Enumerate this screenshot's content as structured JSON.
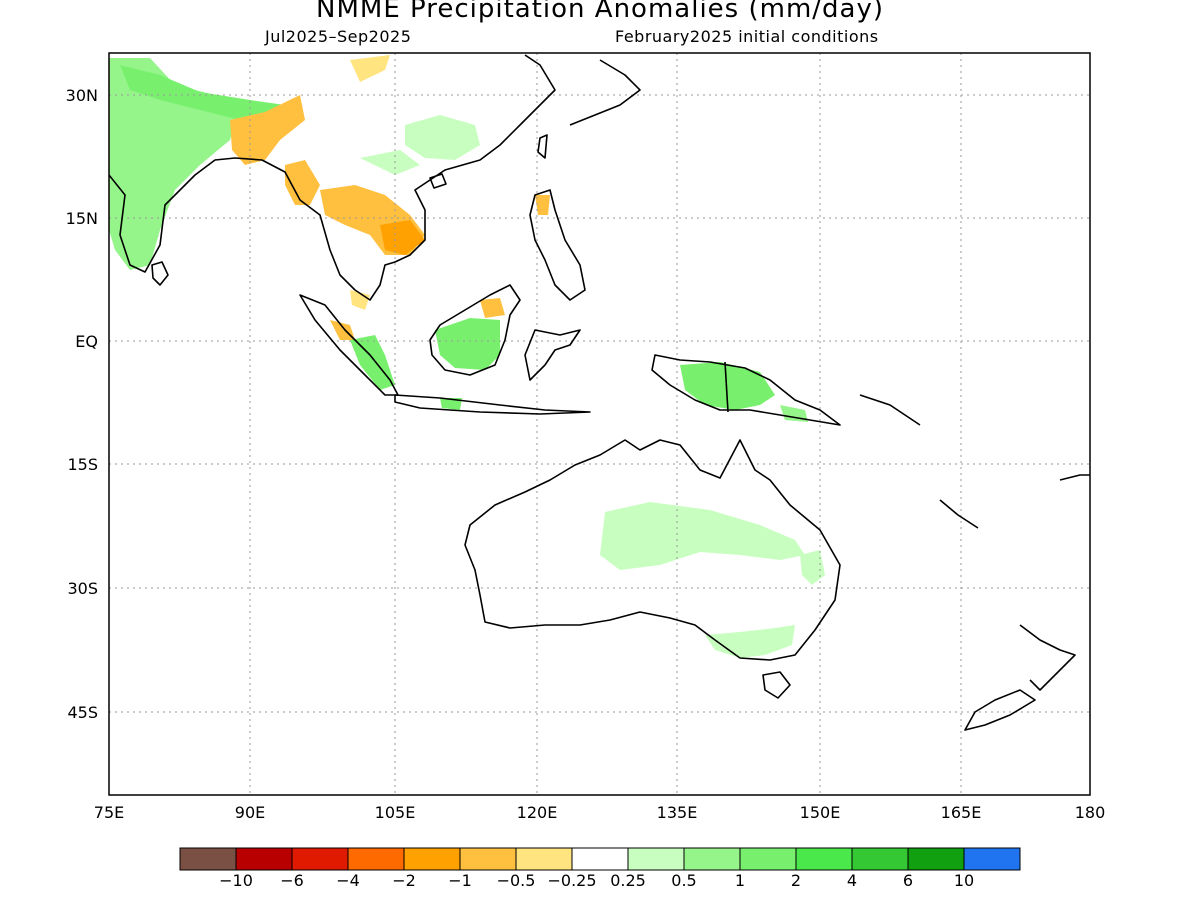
{
  "title": "NMME Precipitation Anomalies (mm/day)",
  "period": "Jul2025–Sep2025",
  "init": "February2025 initial conditions",
  "lat_labels": [
    "30N",
    "15N",
    "EQ",
    "15S",
    "30S",
    "45S"
  ],
  "lon_labels": [
    "75E",
    "90E",
    "105E",
    "120E",
    "135E",
    "150E",
    "165E",
    "180"
  ],
  "colorbar": {
    "colors": [
      "#7a5045",
      "#b80000",
      "#e01a00",
      "#ff6a00",
      "#ffa100",
      "#ffc040",
      "#ffe480",
      "#ffffff",
      "#c8ffc0",
      "#96f58a",
      "#78f06e",
      "#4be84b",
      "#34c834",
      "#10a010",
      "#2074f0"
    ],
    "labels": [
      "−10",
      "−6",
      "−4",
      "−2",
      "−1",
      "−0.5",
      "−0.25",
      "0.25",
      "0.5",
      "1",
      "2",
      "4",
      "6",
      "10"
    ]
  },
  "layers": {
    "grid": "dotted lat/lon gridlines",
    "coastlines": "black",
    "anomaly_colors": {
      "dry_light": "#ffe480",
      "dry_mod": "#ffc040",
      "dry_strong": "#ffa100",
      "wet_light": "#c8ffc0",
      "wet_mod": "#96f58a",
      "wet_strong": "#78f06e"
    }
  }
}
